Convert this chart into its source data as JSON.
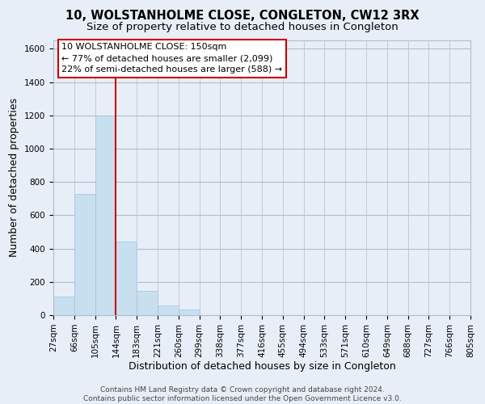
{
  "title": "10, WOLSTANHOLME CLOSE, CONGLETON, CW12 3RX",
  "subtitle": "Size of property relative to detached houses in Congleton",
  "xlabel": "Distribution of detached houses by size in Congleton",
  "ylabel": "Number of detached properties",
  "bin_labels": [
    "27sqm",
    "66sqm",
    "105sqm",
    "144sqm",
    "183sqm",
    "221sqm",
    "260sqm",
    "299sqm",
    "338sqm",
    "377sqm",
    "416sqm",
    "455sqm",
    "494sqm",
    "533sqm",
    "571sqm",
    "610sqm",
    "649sqm",
    "688sqm",
    "727sqm",
    "766sqm",
    "805sqm"
  ],
  "bar_values": [
    110,
    730,
    1200,
    440,
    145,
    60,
    35,
    0,
    0,
    0,
    0,
    0,
    0,
    0,
    0,
    0,
    0,
    0,
    0,
    0
  ],
  "bar_color": "#c8dff0",
  "bar_edge_color": "#a0c4e0",
  "vline_color": "#cc0000",
  "vline_x_index": 3,
  "ylim": [
    0,
    1650
  ],
  "yticks": [
    0,
    200,
    400,
    600,
    800,
    1000,
    1200,
    1400,
    1600
  ],
  "annotation_title": "10 WOLSTANHOLME CLOSE: 150sqm",
  "annotation_line1": "← 77% of detached houses are smaller (2,099)",
  "annotation_line2": "22% of semi-detached houses are larger (588) →",
  "footer_line1": "Contains HM Land Registry data © Crown copyright and database right 2024.",
  "footer_line2": "Contains public sector information licensed under the Open Government Licence v3.0.",
  "background_color": "#e8eef8",
  "plot_bg_color": "#e8eef8",
  "grid_color": "#b0bcd0",
  "title_fontsize": 10.5,
  "subtitle_fontsize": 9.5,
  "axis_label_fontsize": 9,
  "tick_fontsize": 7.5,
  "footer_fontsize": 6.5
}
